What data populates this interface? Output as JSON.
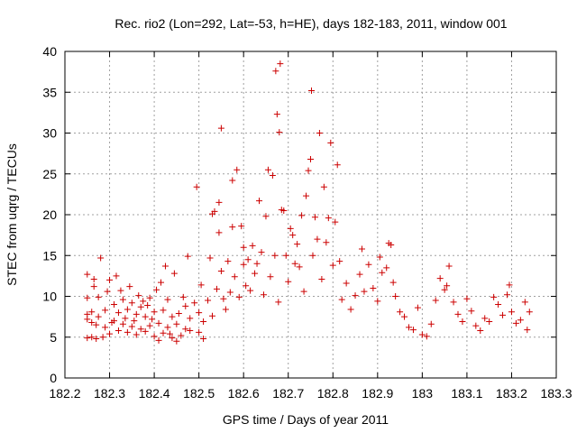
{
  "chart_data": {
    "type": "scatter",
    "title": "Rec. rio2 (Lon=292, Lat=-53, h=HE), days 182-183, 2011, window 001",
    "xlabel": "GPS time / Days of year 2011",
    "ylabel": "STEC from uqrg / TECUs",
    "xlim": [
      182.2,
      183.3
    ],
    "ylim": [
      0,
      40
    ],
    "xticks": [
      182.2,
      182.3,
      182.4,
      182.5,
      182.6,
      182.7,
      182.8,
      182.9,
      183,
      183.1,
      183.2,
      183.3
    ],
    "xtick_labels": [
      "182.2",
      "182.3",
      "182.4",
      "182.5",
      "182.6",
      "182.7",
      "182.8",
      "182.9",
      "183",
      "183.1",
      "183.2",
      "183.3"
    ],
    "yticks": [
      0,
      5,
      10,
      15,
      20,
      25,
      30,
      35,
      40
    ],
    "ytick_labels": [
      "0",
      "5",
      "10",
      "15",
      "20",
      "25",
      "30",
      "35",
      "40"
    ],
    "grid": true,
    "marker": "+",
    "color": "#cc0000",
    "points": [
      [
        182.25,
        4.9
      ],
      [
        182.25,
        7.2
      ],
      [
        182.25,
        7.8
      ],
      [
        182.25,
        9.8
      ],
      [
        182.25,
        12.7
      ],
      [
        182.26,
        5.0
      ],
      [
        182.26,
        6.8
      ],
      [
        182.26,
        8.1
      ],
      [
        182.265,
        11.2
      ],
      [
        182.265,
        12.1
      ],
      [
        182.27,
        4.8
      ],
      [
        182.27,
        6.5
      ],
      [
        182.275,
        7.5
      ],
      [
        182.275,
        9.9
      ],
      [
        182.28,
        14.7
      ],
      [
        182.285,
        5.0
      ],
      [
        182.29,
        6.2
      ],
      [
        182.29,
        8.3
      ],
      [
        182.295,
        10.6
      ],
      [
        182.3,
        12.0
      ],
      [
        182.3,
        5.4
      ],
      [
        182.305,
        6.8
      ],
      [
        182.31,
        7.0
      ],
      [
        182.31,
        9.0
      ],
      [
        182.315,
        12.5
      ],
      [
        182.32,
        5.8
      ],
      [
        182.32,
        8.0
      ],
      [
        182.325,
        10.7
      ],
      [
        182.33,
        6.6
      ],
      [
        182.33,
        9.6
      ],
      [
        182.335,
        7.3
      ],
      [
        182.34,
        5.6
      ],
      [
        182.34,
        8.4
      ],
      [
        182.345,
        11.2
      ],
      [
        182.35,
        6.3
      ],
      [
        182.35,
        9.2
      ],
      [
        182.355,
        7.0
      ],
      [
        182.36,
        5.3
      ],
      [
        182.36,
        7.8
      ],
      [
        182.365,
        10.1
      ],
      [
        182.37,
        6.0
      ],
      [
        182.37,
        8.7
      ],
      [
        182.375,
        9.4
      ],
      [
        182.38,
        5.7
      ],
      [
        182.38,
        7.5
      ],
      [
        182.385,
        8.9
      ],
      [
        182.39,
        6.4
      ],
      [
        182.39,
        9.8
      ],
      [
        182.395,
        7.2
      ],
      [
        182.4,
        5.1
      ],
      [
        182.4,
        8.1
      ],
      [
        182.405,
        10.8
      ],
      [
        182.41,
        6.7
      ],
      [
        182.41,
        4.6
      ],
      [
        182.415,
        11.7
      ],
      [
        182.42,
        5.5
      ],
      [
        182.42,
        8.3
      ],
      [
        182.425,
        13.7
      ],
      [
        182.43,
        6.2
      ],
      [
        182.43,
        9.6
      ],
      [
        182.435,
        5.4
      ],
      [
        182.44,
        4.9
      ],
      [
        182.44,
        7.5
      ],
      [
        182.445,
        12.8
      ],
      [
        182.45,
        6.6
      ],
      [
        182.45,
        4.5
      ],
      [
        182.455,
        7.9
      ],
      [
        182.46,
        5.2
      ],
      [
        182.465,
        9.9
      ],
      [
        182.47,
        6.0
      ],
      [
        182.47,
        8.8
      ],
      [
        182.475,
        14.9
      ],
      [
        182.48,
        5.8
      ],
      [
        182.48,
        7.3
      ],
      [
        182.49,
        9.2
      ],
      [
        182.495,
        23.4
      ],
      [
        182.5,
        5.6
      ],
      [
        182.5,
        8.0
      ],
      [
        182.505,
        11.4
      ],
      [
        182.51,
        6.9
      ],
      [
        182.51,
        4.8
      ],
      [
        182.52,
        9.5
      ],
      [
        182.525,
        14.7
      ],
      [
        182.53,
        7.6
      ],
      [
        182.53,
        20.1
      ],
      [
        182.535,
        20.4
      ],
      [
        182.54,
        10.9
      ],
      [
        182.545,
        21.5
      ],
      [
        182.545,
        17.8
      ],
      [
        182.55,
        30.6
      ],
      [
        182.55,
        13.1
      ],
      [
        182.555,
        9.7
      ],
      [
        182.56,
        8.4
      ],
      [
        182.565,
        14.3
      ],
      [
        182.57,
        10.5
      ],
      [
        182.575,
        24.2
      ],
      [
        182.575,
        18.5
      ],
      [
        182.58,
        12.4
      ],
      [
        182.585,
        25.5
      ],
      [
        182.59,
        9.9
      ],
      [
        182.595,
        18.6
      ],
      [
        182.6,
        13.9
      ],
      [
        182.6,
        16.0
      ],
      [
        182.605,
        11.3
      ],
      [
        182.61,
        14.5
      ],
      [
        182.615,
        10.7
      ],
      [
        182.62,
        16.2
      ],
      [
        182.625,
        12.8
      ],
      [
        182.63,
        14.0
      ],
      [
        182.635,
        21.7
      ],
      [
        182.64,
        15.4
      ],
      [
        182.645,
        10.2
      ],
      [
        182.65,
        19.8
      ],
      [
        182.655,
        25.5
      ],
      [
        182.66,
        12.4
      ],
      [
        182.665,
        24.8
      ],
      [
        182.67,
        15.0
      ],
      [
        182.672,
        37.6
      ],
      [
        182.675,
        32.3
      ],
      [
        182.678,
        9.3
      ],
      [
        182.68,
        30.1
      ],
      [
        182.682,
        38.5
      ],
      [
        182.685,
        20.6
      ],
      [
        182.69,
        20.5
      ],
      [
        182.695,
        15.0
      ],
      [
        182.7,
        11.8
      ],
      [
        182.705,
        18.3
      ],
      [
        182.71,
        17.5
      ],
      [
        182.715,
        14.0
      ],
      [
        182.72,
        16.4
      ],
      [
        182.725,
        13.6
      ],
      [
        182.73,
        19.9
      ],
      [
        182.735,
        10.6
      ],
      [
        182.74,
        22.3
      ],
      [
        182.745,
        25.4
      ],
      [
        182.75,
        26.8
      ],
      [
        182.752,
        35.2
      ],
      [
        182.755,
        15.0
      ],
      [
        182.76,
        19.7
      ],
      [
        182.765,
        17.0
      ],
      [
        182.77,
        30.0
      ],
      [
        182.775,
        12.1
      ],
      [
        182.78,
        23.4
      ],
      [
        182.785,
        16.6
      ],
      [
        182.79,
        19.6
      ],
      [
        182.795,
        28.8
      ],
      [
        182.8,
        13.8
      ],
      [
        182.805,
        19.1
      ],
      [
        182.81,
        26.1
      ],
      [
        182.815,
        14.3
      ],
      [
        182.82,
        9.6
      ],
      [
        182.83,
        11.6
      ],
      [
        182.84,
        8.4
      ],
      [
        182.85,
        10.1
      ],
      [
        182.86,
        12.7
      ],
      [
        182.865,
        15.8
      ],
      [
        182.87,
        10.6
      ],
      [
        182.88,
        13.9
      ],
      [
        182.89,
        11.0
      ],
      [
        182.9,
        9.4
      ],
      [
        182.905,
        14.8
      ],
      [
        182.91,
        12.9
      ],
      [
        182.92,
        13.5
      ],
      [
        182.925,
        16.5
      ],
      [
        182.93,
        16.3
      ],
      [
        182.935,
        11.7
      ],
      [
        182.94,
        10.0
      ],
      [
        182.95,
        8.1
      ],
      [
        182.96,
        7.5
      ],
      [
        182.97,
        6.2
      ],
      [
        182.98,
        5.9
      ],
      [
        182.99,
        8.6
      ],
      [
        183.0,
        5.3
      ],
      [
        183.01,
        5.1
      ],
      [
        183.02,
        6.6
      ],
      [
        183.03,
        9.5
      ],
      [
        183.04,
        12.2
      ],
      [
        183.05,
        10.8
      ],
      [
        183.055,
        11.3
      ],
      [
        183.06,
        13.7
      ],
      [
        183.07,
        9.3
      ],
      [
        183.08,
        7.8
      ],
      [
        183.09,
        6.9
      ],
      [
        183.1,
        9.7
      ],
      [
        183.11,
        8.2
      ],
      [
        183.12,
        6.4
      ],
      [
        183.13,
        5.8
      ],
      [
        183.14,
        7.3
      ],
      [
        183.15,
        6.9
      ],
      [
        183.16,
        9.9
      ],
      [
        183.17,
        9.0
      ],
      [
        183.18,
        7.7
      ],
      [
        183.19,
        10.2
      ],
      [
        183.195,
        11.4
      ],
      [
        183.2,
        8.1
      ],
      [
        183.21,
        6.7
      ],
      [
        183.22,
        7.1
      ],
      [
        183.23,
        9.3
      ],
      [
        183.235,
        5.9
      ],
      [
        183.24,
        8.1
      ]
    ]
  }
}
